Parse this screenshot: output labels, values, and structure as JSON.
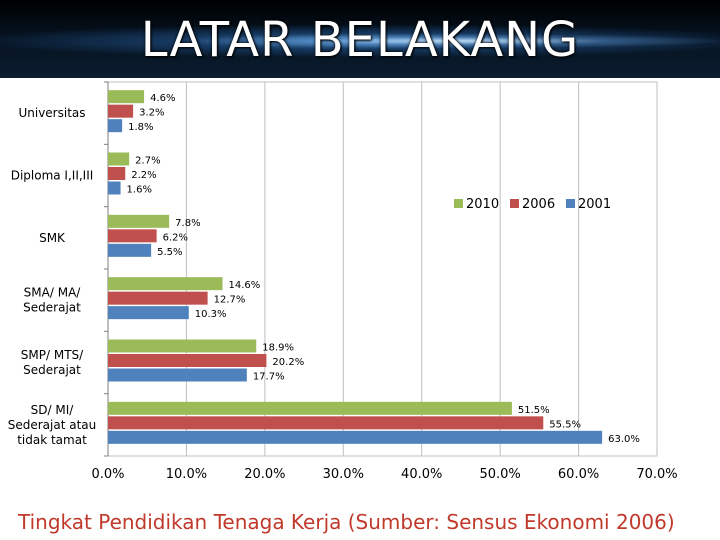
{
  "slide": {
    "title": "LATAR BELAKANG",
    "caption": "Tingkat Pendidikan Tenaga Kerja (Sumber: Sensus Ekonomi 2006)"
  },
  "colors": {
    "s2010": "#9bbb59",
    "s2006": "#c0504d",
    "s2001": "#4f81bd",
    "caption": "#c0392b"
  },
  "chart_data": {
    "type": "bar",
    "orientation": "horizontal",
    "categories": [
      [
        "Universitas"
      ],
      [
        "Diploma I,II,III"
      ],
      [
        "SMK"
      ],
      [
        "SMA/ MA/",
        "Sederajat"
      ],
      [
        "SMP/ MTS/",
        "Sederajat"
      ],
      [
        "SD/ MI/",
        "Sederajat atau",
        "tidak tamat"
      ]
    ],
    "series": [
      {
        "name": "2010",
        "values": [
          4.6,
          2.7,
          7.8,
          14.6,
          18.9,
          51.5
        ],
        "labels": [
          "4.6%",
          "2.7%",
          "7.8%",
          "14.6%",
          "18.9%",
          "51.5%"
        ]
      },
      {
        "name": "2006",
        "values": [
          3.2,
          2.2,
          6.2,
          12.7,
          20.2,
          55.5
        ],
        "labels": [
          "3.2%",
          "2.2%",
          "6.2%",
          "12.7%",
          "20.2%",
          "55.5%"
        ]
      },
      {
        "name": "2001",
        "values": [
          1.8,
          1.6,
          5.5,
          10.3,
          17.7,
          63.0
        ],
        "labels": [
          "1.8%",
          "1.6%",
          "5.5%",
          "10.3%",
          "17.7%",
          "63.0%"
        ]
      }
    ],
    "xlim": [
      0,
      70
    ],
    "xticks": [
      0,
      10,
      20,
      30,
      40,
      50,
      60,
      70
    ],
    "xtick_labels": [
      "0.0%",
      "10.0%",
      "20.0%",
      "30.0%",
      "40.0%",
      "50.0%",
      "60.0%",
      "70.0%"
    ],
    "grid": "vertical",
    "legend_position": "right"
  }
}
